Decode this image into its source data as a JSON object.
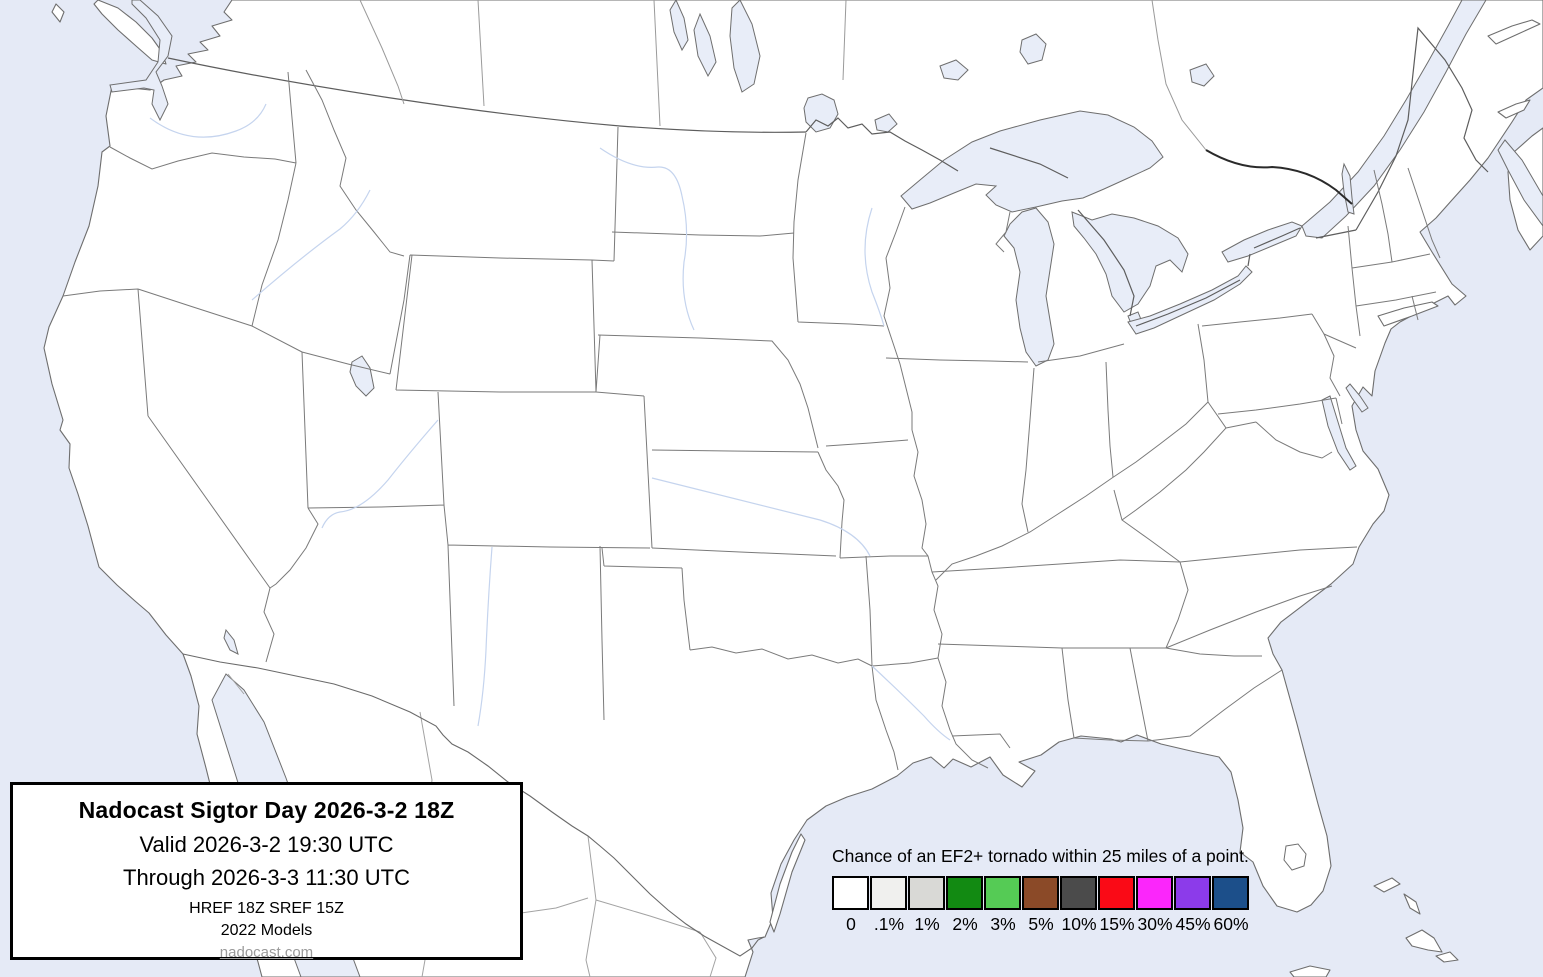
{
  "title_box": {
    "title": "Nadocast Sigtor Day 2026-3-2 18Z",
    "valid_line": "Valid 2026-3-2 19:30 UTC",
    "through_line": "Through 2026-3-3 11:30 UTC",
    "models_line": "HREF 18Z SREF 15Z",
    "models_year_line": "2022 Models",
    "website": "nadocast.com"
  },
  "legend": {
    "title": "Chance of an EF2+ tornado within 25 miles of a point.",
    "items": [
      {
        "label": "0",
        "color": "#ffffff"
      },
      {
        "label": ".1%",
        "color": "#f0f0ee"
      },
      {
        "label": "1%",
        "color": "#d9d9d6"
      },
      {
        "label": "2%",
        "color": "#128a12"
      },
      {
        "label": "3%",
        "color": "#55cb55"
      },
      {
        "label": "5%",
        "color": "#8b4a28"
      },
      {
        "label": "10%",
        "color": "#4b4b4b"
      },
      {
        "label": "15%",
        "color": "#fa0a16"
      },
      {
        "label": "30%",
        "color": "#fb26fb"
      },
      {
        "label": "45%",
        "color": "#8c3bea"
      },
      {
        "label": "60%",
        "color": "#1c4f8a"
      }
    ]
  },
  "map": {
    "ocean_color": "#e5eaf6",
    "land_color": "#ffffff",
    "lake_color": "#e8edf8",
    "boundary_color": "#6e6e6e",
    "state_line_color": "#7a7a7a",
    "foreign_line_color": "#a3a3a3",
    "river_color": "#c5d4ee",
    "dark_river_color": "#2a2a2a"
  }
}
